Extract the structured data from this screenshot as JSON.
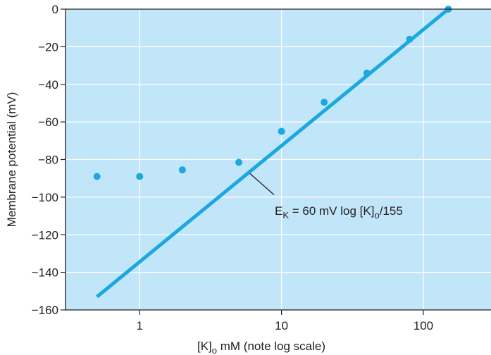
{
  "chart_data": {
    "type": "scatter",
    "xscale": "log",
    "xlim": [
      0.3,
      300
    ],
    "ylim": [
      -160,
      0
    ],
    "x_ticks": [
      1,
      10,
      100
    ],
    "x_tick_labels": [
      "1",
      "10",
      "100"
    ],
    "y_ticks": [
      0,
      -20,
      -40,
      -60,
      -80,
      -100,
      -120,
      -140,
      -160
    ],
    "y_tick_labels": [
      "0",
      "−20",
      "−40",
      "−60",
      "−80",
      "−100",
      "−120",
      "−140",
      "−160"
    ],
    "ylabel": "Membrane potential (mV)",
    "xlabel": {
      "main": "[K]",
      "sub": "o",
      "rest": " mM (note log scale)"
    },
    "grid": true,
    "series": [
      {
        "kind": "points",
        "x": [
          0.5,
          1,
          2,
          5,
          10,
          20,
          40,
          80,
          150
        ],
        "y": [
          -89,
          -89,
          -85.5,
          -81.5,
          -65,
          -49.5,
          -34,
          -16,
          0
        ]
      },
      {
        "kind": "line",
        "x": [
          0.5,
          150
        ],
        "y": [
          -153,
          0
        ]
      }
    ],
    "annotation": {
      "parts": [
        {
          "text": "E",
          "sub": false
        },
        {
          "text": "K",
          "sub": true
        },
        {
          "text": " = 60 mV log [K]",
          "sub": false
        },
        {
          "text": "o",
          "sub": true
        },
        {
          "text": "/155",
          "sub": false
        }
      ],
      "pointer_x": 6,
      "pointer_y": -87.5
    },
    "colors": {
      "plot_background": "#c2e6f9",
      "grid": "#ffffff",
      "points": "#1aa8e0",
      "line": "#1aa8e0",
      "axis": "#231f20"
    }
  }
}
